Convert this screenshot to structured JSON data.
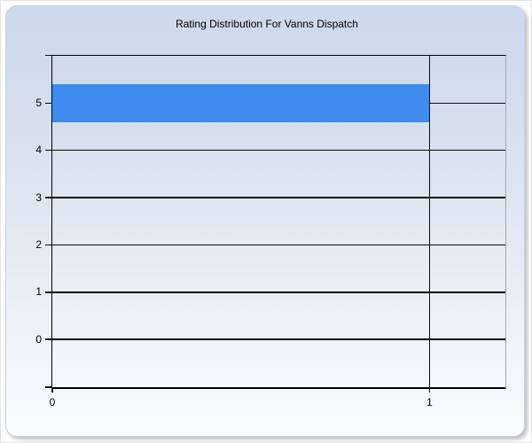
{
  "title": "Rating Distribution For Vanns Dispatch",
  "colors": {
    "bar": "#3F8CEE",
    "panel_gradient_top": "#CBD9EC",
    "panel_gradient_bottom": "#FBFCFE",
    "grid_line": "#0A0A0A",
    "plot_right_border": "#A3A9B3",
    "text": "#000000"
  },
  "chart_data": {
    "type": "bar",
    "orientation": "horizontal",
    "title": "Rating Distribution For Vanns Dispatch",
    "categories": [
      5,
      4,
      3,
      2,
      1,
      0
    ],
    "values": [
      1,
      0,
      0,
      0,
      0,
      0
    ],
    "xlabel": "",
    "ylabel": "",
    "x_ticks": [
      0,
      1
    ],
    "y_ticks": [
      5,
      4,
      3,
      2,
      1,
      0
    ],
    "xlim": [
      0,
      1.2
    ],
    "ylim": [
      -1,
      6
    ],
    "bar_thickness_units": 0.8,
    "grid": true,
    "legend": false
  }
}
